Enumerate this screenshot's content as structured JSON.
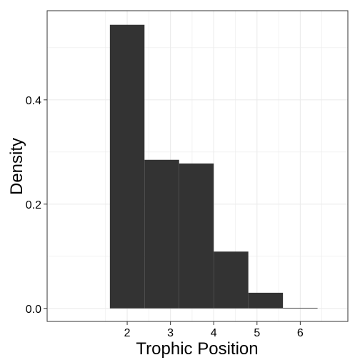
{
  "chart_data": {
    "type": "bar",
    "title": "",
    "xlabel": "Trophic Position",
    "ylabel": "Density",
    "bins": [
      {
        "x0": 1.6,
        "x1": 2.4,
        "density": 0.544
      },
      {
        "x0": 2.4,
        "x1": 3.2,
        "density": 0.285
      },
      {
        "x0": 3.2,
        "x1": 4.0,
        "density": 0.278
      },
      {
        "x0": 4.0,
        "x1": 4.8,
        "density": 0.109
      },
      {
        "x0": 4.8,
        "x1": 5.6,
        "density": 0.03
      },
      {
        "x0": 5.6,
        "x1": 6.4,
        "density": 0.001
      }
    ],
    "xlim": [
      0.15,
      7.1
    ],
    "ylim": [
      -0.025,
      0.571
    ],
    "xticks": [
      2,
      3,
      4,
      5,
      6
    ],
    "xtick_labels": [
      "2",
      "3",
      "4",
      "5",
      "6"
    ],
    "yticks": [
      0.0,
      0.2,
      0.4
    ],
    "ytick_labels": [
      "0.0",
      "0.2",
      "0.4"
    ],
    "grid": true,
    "bar_color": "#333333",
    "grid_color": "#ebebeb",
    "panel_border_color": "#333333"
  }
}
